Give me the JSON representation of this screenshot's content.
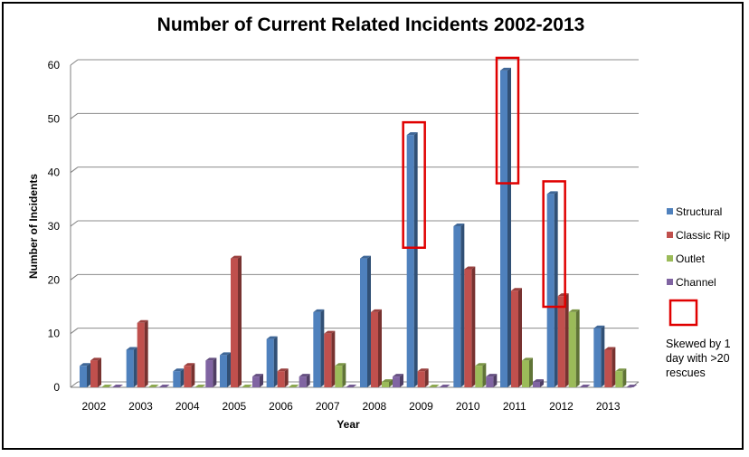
{
  "chart_data": {
    "type": "bar",
    "title": "Number of Current Related Incidents 2002-2013",
    "xlabel": "Year",
    "ylabel": "Number of Incidents",
    "ylim": [
      0,
      60
    ],
    "yticks": [
      0,
      10,
      20,
      30,
      40,
      50,
      60
    ],
    "grid": true,
    "legend_position": "right",
    "categories": [
      "2002",
      "2003",
      "2004",
      "2005",
      "2006",
      "2007",
      "2008",
      "2009",
      "2010",
      "2011",
      "2012",
      "2013"
    ],
    "series": [
      {
        "name": "Structural",
        "color": "#4f81bd",
        "values": [
          4,
          7,
          3,
          6,
          9,
          14,
          24,
          47,
          30,
          59,
          36,
          11
        ]
      },
      {
        "name": "Classic Rip",
        "color": "#c0504d",
        "values": [
          5,
          12,
          4,
          24,
          3,
          10,
          14,
          3,
          22,
          18,
          17,
          7
        ]
      },
      {
        "name": "Outlet",
        "color": "#9bbb59",
        "values": [
          0,
          0,
          0,
          0,
          0,
          4,
          1,
          0,
          4,
          5,
          14,
          3
        ]
      },
      {
        "name": "Channel",
        "color": "#8064a2",
        "values": [
          0,
          0,
          5,
          2,
          2,
          0,
          2,
          0,
          2,
          1,
          0,
          0
        ]
      }
    ],
    "highlight": {
      "color": "#e00000",
      "categories": [
        "2009",
        "2011",
        "2012"
      ],
      "series": "Structural",
      "legend_note": "Skewed by 1 day with >20 rescues"
    }
  }
}
